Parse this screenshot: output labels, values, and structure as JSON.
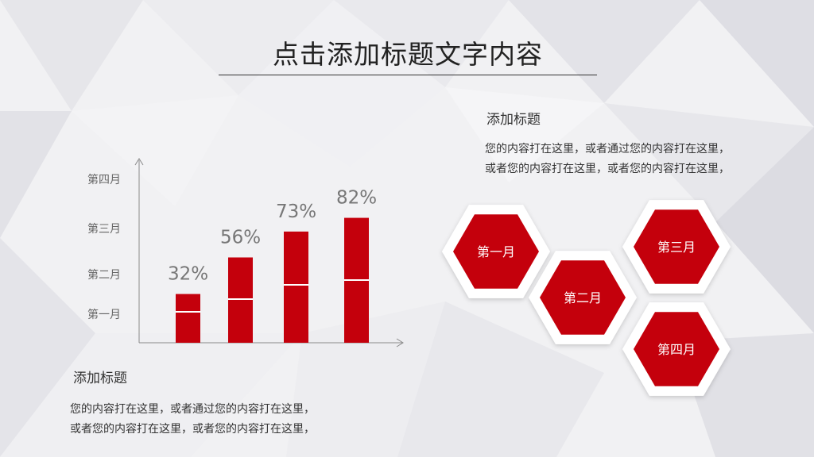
{
  "slide": {
    "title": "点击添加标题文字内容"
  },
  "right_block": {
    "heading": "添加标题",
    "lines": [
      "您的内容打在这里，或者通过您的内容打在这里，",
      "或者您的内容打在这里，或者您的内容打在这里，"
    ]
  },
  "left_block": {
    "heading": "添加标题",
    "lines": [
      "您的内容打在这里，或者通过您的内容打在这里，",
      "或者您的内容打在这里，或者您的内容打在这里，"
    ]
  },
  "hexagons": [
    "第一月",
    "第二月",
    "第三月",
    "第四月"
  ],
  "colors": {
    "accent": "#c4000c",
    "axis": "#8a8a8a",
    "label": "#666666",
    "value_label": "#777777"
  },
  "chart_data": {
    "type": "bar",
    "categories": [
      "",
      "",
      "",
      ""
    ],
    "values": [
      32,
      56,
      73,
      82
    ],
    "value_labels": [
      "32%",
      "56%",
      "73%",
      "82%"
    ],
    "y_tick_labels": [
      "第一月",
      "第二月",
      "第三月",
      "第四月"
    ],
    "ylim": [
      0,
      100
    ],
    "grid": false,
    "legend": "none"
  }
}
